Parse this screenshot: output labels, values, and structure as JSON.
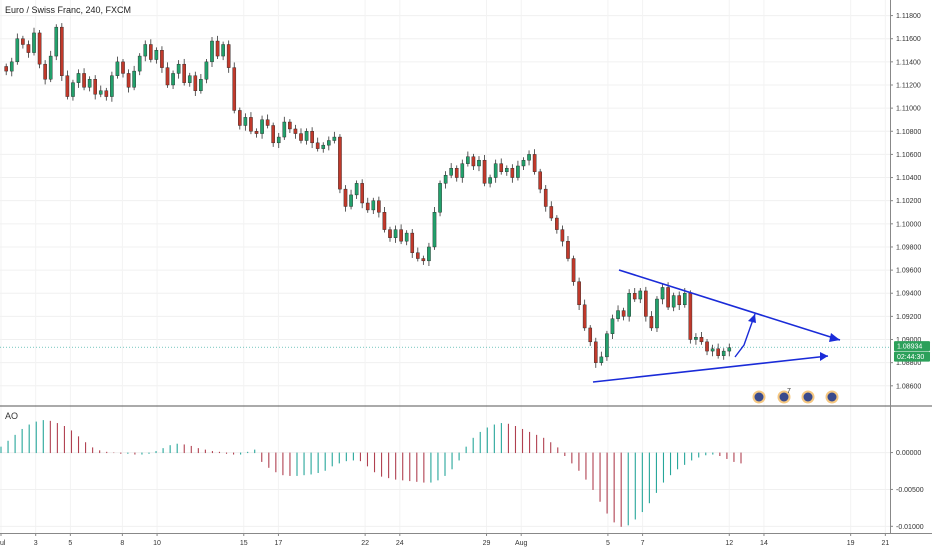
{
  "header": {
    "title": "Euro / Swiss Franc, 240, FXCM"
  },
  "indicator": {
    "label": "AO"
  },
  "price_badges": {
    "last_price": "1.08934",
    "countdown": "02:44:30"
  },
  "event_markers": {
    "count_label": "7"
  },
  "colors": {
    "up": "#22a06b",
    "down": "#c0392b",
    "wick": "#333333",
    "trendline": "#1a2bd8",
    "price_line": "#26a69a",
    "ao_up": "#26a69a",
    "ao_down": "#b04050",
    "badge": "#2ca05a"
  },
  "chart_data": [
    {
      "type": "candlestick",
      "title": "Euro / Swiss Franc, 240, FXCM",
      "ylim": [
        1.0846,
        1.119
      ],
      "y_ticks": [
        "1.11800",
        "1.11600",
        "1.11400",
        "1.11200",
        "1.11000",
        "1.10800",
        "1.10600",
        "1.10400",
        "1.10200",
        "1.10000",
        "1.09800",
        "1.09600",
        "1.09400",
        "1.09200",
        "1.09000",
        "1.08800",
        "1.08600"
      ],
      "x_ticks": [
        "Jul",
        "3",
        "5",
        "8",
        "10",
        "15",
        "17",
        "22",
        "24",
        "29",
        "Aug",
        "5",
        "7",
        "12",
        "14",
        "19",
        "21"
      ],
      "x_tick_positions": [
        1,
        3,
        5,
        8,
        10,
        15,
        17,
        22,
        24,
        29,
        31,
        36,
        38,
        43,
        45,
        50,
        52
      ],
      "last_price": 1.08934,
      "closes": [
        1.1132,
        1.114,
        1.116,
        1.1155,
        1.1148,
        1.1165,
        1.1138,
        1.1125,
        1.1145,
        1.117,
        1.1128,
        1.111,
        1.1122,
        1.113,
        1.1118,
        1.1125,
        1.1112,
        1.1115,
        1.111,
        1.1128,
        1.114,
        1.113,
        1.1118,
        1.1132,
        1.1145,
        1.1155,
        1.1142,
        1.115,
        1.1135,
        1.112,
        1.113,
        1.1138,
        1.1122,
        1.1128,
        1.1115,
        1.1125,
        1.114,
        1.1158,
        1.1145,
        1.1155,
        1.1135,
        1.1098,
        1.1085,
        1.1092,
        1.108,
        1.1078,
        1.109,
        1.1085,
        1.107,
        1.1075,
        1.1088,
        1.1082,
        1.1078,
        1.1072,
        1.108,
        1.107,
        1.1065,
        1.1068,
        1.1072,
        1.1075,
        1.103,
        1.1015,
        1.1025,
        1.1035,
        1.1018,
        1.1012,
        1.102,
        1.101,
        1.0995,
        1.0988,
        1.0995,
        1.0985,
        1.0992,
        1.0975,
        1.097,
        1.0968,
        1.098,
        1.101,
        1.1035,
        1.1042,
        1.1048,
        1.104,
        1.1052,
        1.1058,
        1.105,
        1.1055,
        1.1035,
        1.104,
        1.1052,
        1.1045,
        1.1048,
        1.104,
        1.105,
        1.1055,
        1.106,
        1.1045,
        1.103,
        1.1015,
        1.1005,
        1.0995,
        1.0985,
        1.097,
        1.095,
        1.093,
        1.091,
        1.0898,
        1.088,
        1.0885,
        1.0905,
        1.0918,
        1.0925,
        1.092,
        1.094,
        1.0935,
        1.0942,
        1.092,
        1.091,
        1.0935,
        1.0945,
        1.0928,
        1.0938,
        1.093,
        1.094,
        1.09,
        1.0902,
        1.0898,
        1.089,
        1.0892,
        1.0886,
        1.089,
        1.0893
      ]
    },
    {
      "type": "histogram",
      "title": "AO",
      "ylim": [
        -0.0105,
        0.0055
      ],
      "y_ticks": [
        "0.00000",
        "-0.00500",
        "-0.01000"
      ],
      "values": [
        0.0008,
        0.0016,
        0.0024,
        0.0032,
        0.0038,
        0.0042,
        0.0044,
        0.0043,
        0.004,
        0.0036,
        0.003,
        0.0022,
        0.0014,
        0.0007,
        0.0003,
        0.0001,
        0.0,
        -0.0001,
        -0.0001,
        -0.0002,
        -0.0002,
        -0.0001,
        0.0002,
        0.0006,
        0.001,
        0.0012,
        0.0011,
        0.0009,
        0.0006,
        0.0004,
        0.0002,
        0.0001,
        -0.0001,
        -0.0002,
        -0.0002,
        0.0001,
        0.0004,
        -0.0012,
        -0.002,
        -0.0026,
        -0.003,
        -0.0031,
        -0.0031,
        -0.003,
        -0.0029,
        -0.0027,
        -0.0024,
        -0.0018,
        -0.0014,
        -0.0011,
        -0.001,
        -0.0011,
        -0.0018,
        -0.0026,
        -0.0032,
        -0.0034,
        -0.0036,
        -0.0037,
        -0.0038,
        -0.0039,
        -0.004,
        -0.004,
        -0.0037,
        -0.0031,
        -0.0022,
        -0.001,
        0.0008,
        0.002,
        0.0028,
        0.0034,
        0.0038,
        0.004,
        0.0039,
        0.0036,
        0.0032,
        0.0028,
        0.0024,
        0.002,
        0.0014,
        0.0007,
        -0.0004,
        -0.0014,
        -0.0024,
        -0.0036,
        -0.005,
        -0.0066,
        -0.0082,
        -0.0094,
        -0.01,
        -0.0098,
        -0.009,
        -0.008,
        -0.0068,
        -0.0054,
        -0.004,
        -0.003,
        -0.0022,
        -0.0016,
        -0.001,
        -0.0006,
        -0.0003,
        -0.0002,
        -0.0004,
        -0.0008,
        -0.0012,
        -0.0014
      ]
    }
  ]
}
